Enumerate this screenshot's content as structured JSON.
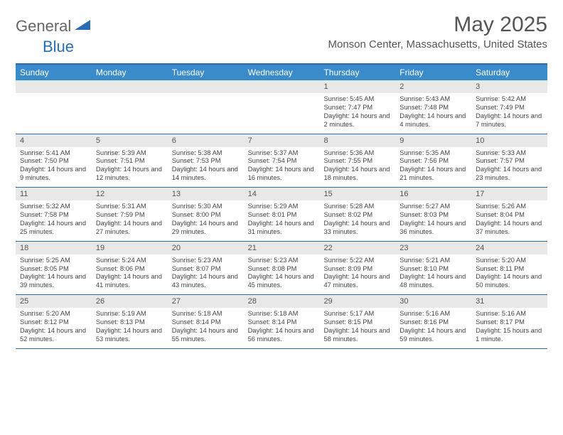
{
  "logo": {
    "general": "General",
    "blue": "Blue"
  },
  "title": {
    "month": "May 2025",
    "location": "Monson Center, Massachusetts, United States"
  },
  "colors": {
    "header_bg": "#3a8bc9",
    "border": "#2a6db0",
    "band_bg": "#e8e8e8",
    "text": "#444444"
  },
  "day_headers": [
    "Sunday",
    "Monday",
    "Tuesday",
    "Wednesday",
    "Thursday",
    "Friday",
    "Saturday"
  ],
  "weeks": [
    [
      {
        "num": "",
        "sunrise": "",
        "sunset": "",
        "daylight": ""
      },
      {
        "num": "",
        "sunrise": "",
        "sunset": "",
        "daylight": ""
      },
      {
        "num": "",
        "sunrise": "",
        "sunset": "",
        "daylight": ""
      },
      {
        "num": "",
        "sunrise": "",
        "sunset": "",
        "daylight": ""
      },
      {
        "num": "1",
        "sunrise": "Sunrise: 5:45 AM",
        "sunset": "Sunset: 7:47 PM",
        "daylight": "Daylight: 14 hours and 2 minutes."
      },
      {
        "num": "2",
        "sunrise": "Sunrise: 5:43 AM",
        "sunset": "Sunset: 7:48 PM",
        "daylight": "Daylight: 14 hours and 4 minutes."
      },
      {
        "num": "3",
        "sunrise": "Sunrise: 5:42 AM",
        "sunset": "Sunset: 7:49 PM",
        "daylight": "Daylight: 14 hours and 7 minutes."
      }
    ],
    [
      {
        "num": "4",
        "sunrise": "Sunrise: 5:41 AM",
        "sunset": "Sunset: 7:50 PM",
        "daylight": "Daylight: 14 hours and 9 minutes."
      },
      {
        "num": "5",
        "sunrise": "Sunrise: 5:39 AM",
        "sunset": "Sunset: 7:51 PM",
        "daylight": "Daylight: 14 hours and 12 minutes."
      },
      {
        "num": "6",
        "sunrise": "Sunrise: 5:38 AM",
        "sunset": "Sunset: 7:53 PM",
        "daylight": "Daylight: 14 hours and 14 minutes."
      },
      {
        "num": "7",
        "sunrise": "Sunrise: 5:37 AM",
        "sunset": "Sunset: 7:54 PM",
        "daylight": "Daylight: 14 hours and 16 minutes."
      },
      {
        "num": "8",
        "sunrise": "Sunrise: 5:36 AM",
        "sunset": "Sunset: 7:55 PM",
        "daylight": "Daylight: 14 hours and 18 minutes."
      },
      {
        "num": "9",
        "sunrise": "Sunrise: 5:35 AM",
        "sunset": "Sunset: 7:56 PM",
        "daylight": "Daylight: 14 hours and 21 minutes."
      },
      {
        "num": "10",
        "sunrise": "Sunrise: 5:33 AM",
        "sunset": "Sunset: 7:57 PM",
        "daylight": "Daylight: 14 hours and 23 minutes."
      }
    ],
    [
      {
        "num": "11",
        "sunrise": "Sunrise: 5:32 AM",
        "sunset": "Sunset: 7:58 PM",
        "daylight": "Daylight: 14 hours and 25 minutes."
      },
      {
        "num": "12",
        "sunrise": "Sunrise: 5:31 AM",
        "sunset": "Sunset: 7:59 PM",
        "daylight": "Daylight: 14 hours and 27 minutes."
      },
      {
        "num": "13",
        "sunrise": "Sunrise: 5:30 AM",
        "sunset": "Sunset: 8:00 PM",
        "daylight": "Daylight: 14 hours and 29 minutes."
      },
      {
        "num": "14",
        "sunrise": "Sunrise: 5:29 AM",
        "sunset": "Sunset: 8:01 PM",
        "daylight": "Daylight: 14 hours and 31 minutes."
      },
      {
        "num": "15",
        "sunrise": "Sunrise: 5:28 AM",
        "sunset": "Sunset: 8:02 PM",
        "daylight": "Daylight: 14 hours and 33 minutes."
      },
      {
        "num": "16",
        "sunrise": "Sunrise: 5:27 AM",
        "sunset": "Sunset: 8:03 PM",
        "daylight": "Daylight: 14 hours and 36 minutes."
      },
      {
        "num": "17",
        "sunrise": "Sunrise: 5:26 AM",
        "sunset": "Sunset: 8:04 PM",
        "daylight": "Daylight: 14 hours and 37 minutes."
      }
    ],
    [
      {
        "num": "18",
        "sunrise": "Sunrise: 5:25 AM",
        "sunset": "Sunset: 8:05 PM",
        "daylight": "Daylight: 14 hours and 39 minutes."
      },
      {
        "num": "19",
        "sunrise": "Sunrise: 5:24 AM",
        "sunset": "Sunset: 8:06 PM",
        "daylight": "Daylight: 14 hours and 41 minutes."
      },
      {
        "num": "20",
        "sunrise": "Sunrise: 5:23 AM",
        "sunset": "Sunset: 8:07 PM",
        "daylight": "Daylight: 14 hours and 43 minutes."
      },
      {
        "num": "21",
        "sunrise": "Sunrise: 5:23 AM",
        "sunset": "Sunset: 8:08 PM",
        "daylight": "Daylight: 14 hours and 45 minutes."
      },
      {
        "num": "22",
        "sunrise": "Sunrise: 5:22 AM",
        "sunset": "Sunset: 8:09 PM",
        "daylight": "Daylight: 14 hours and 47 minutes."
      },
      {
        "num": "23",
        "sunrise": "Sunrise: 5:21 AM",
        "sunset": "Sunset: 8:10 PM",
        "daylight": "Daylight: 14 hours and 48 minutes."
      },
      {
        "num": "24",
        "sunrise": "Sunrise: 5:20 AM",
        "sunset": "Sunset: 8:11 PM",
        "daylight": "Daylight: 14 hours and 50 minutes."
      }
    ],
    [
      {
        "num": "25",
        "sunrise": "Sunrise: 5:20 AM",
        "sunset": "Sunset: 8:12 PM",
        "daylight": "Daylight: 14 hours and 52 minutes."
      },
      {
        "num": "26",
        "sunrise": "Sunrise: 5:19 AM",
        "sunset": "Sunset: 8:13 PM",
        "daylight": "Daylight: 14 hours and 53 minutes."
      },
      {
        "num": "27",
        "sunrise": "Sunrise: 5:18 AM",
        "sunset": "Sunset: 8:14 PM",
        "daylight": "Daylight: 14 hours and 55 minutes."
      },
      {
        "num": "28",
        "sunrise": "Sunrise: 5:18 AM",
        "sunset": "Sunset: 8:14 PM",
        "daylight": "Daylight: 14 hours and 56 minutes."
      },
      {
        "num": "29",
        "sunrise": "Sunrise: 5:17 AM",
        "sunset": "Sunset: 8:15 PM",
        "daylight": "Daylight: 14 hours and 58 minutes."
      },
      {
        "num": "30",
        "sunrise": "Sunrise: 5:16 AM",
        "sunset": "Sunset: 8:16 PM",
        "daylight": "Daylight: 14 hours and 59 minutes."
      },
      {
        "num": "31",
        "sunrise": "Sunrise: 5:16 AM",
        "sunset": "Sunset: 8:17 PM",
        "daylight": "Daylight: 15 hours and 1 minute."
      }
    ]
  ]
}
